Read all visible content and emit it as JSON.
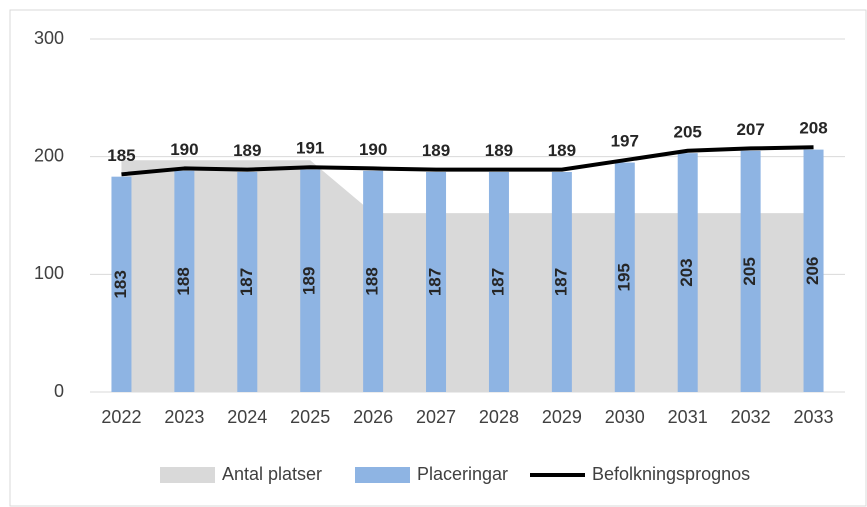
{
  "chart_data": {
    "type": "combo",
    "categories": [
      "2022",
      "2023",
      "2024",
      "2025",
      "2026",
      "2027",
      "2028",
      "2029",
      "2030",
      "2031",
      "2032",
      "2033"
    ],
    "series": [
      {
        "name": "Antal platser",
        "type": "area",
        "color": "#d9d9d9",
        "values": [
          197,
          197,
          197,
          197,
          152,
          152,
          152,
          152,
          152,
          152,
          152,
          152
        ]
      },
      {
        "name": "Placeringar",
        "type": "bar",
        "color": "#8eb4e3",
        "values": [
          183,
          188,
          187,
          189,
          188,
          187,
          187,
          187,
          195,
          203,
          205,
          206
        ]
      },
      {
        "name": "Befolkningsprognos",
        "type": "line",
        "color": "#000000",
        "values": [
          185,
          190,
          189,
          191,
          190,
          189,
          189,
          189,
          197,
          205,
          207,
          208
        ]
      }
    ],
    "ylim": [
      0,
      300
    ],
    "yticks": [
      0,
      100,
      200,
      300
    ],
    "grid": true,
    "legend": "bottom"
  }
}
